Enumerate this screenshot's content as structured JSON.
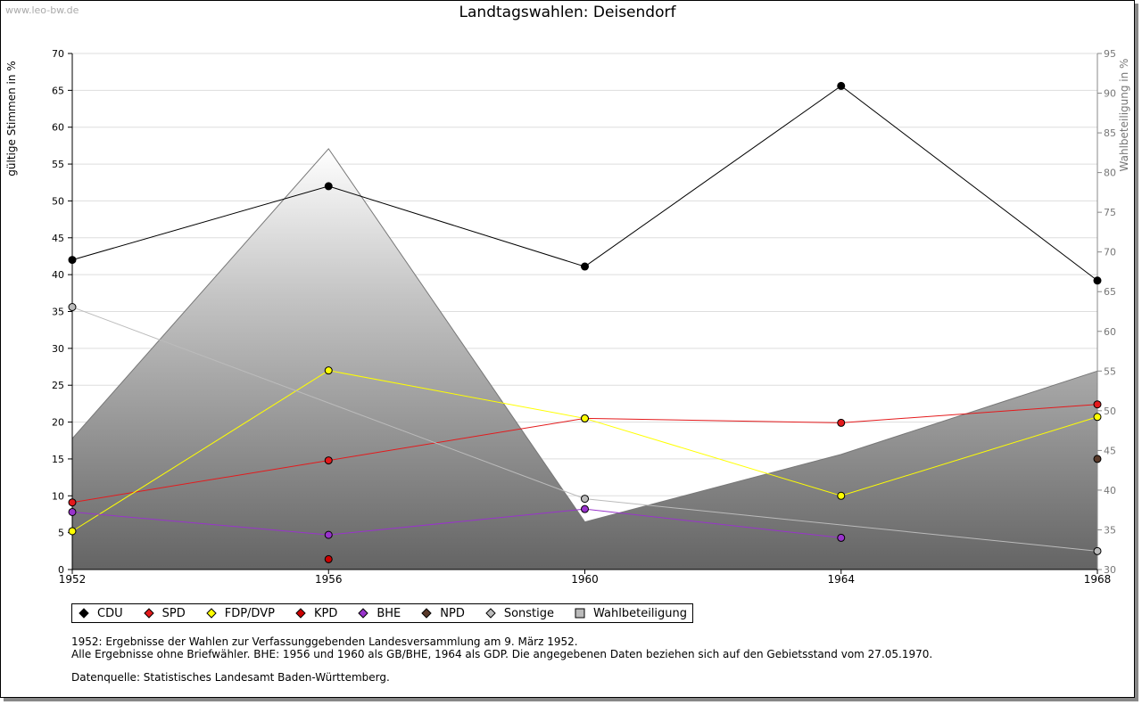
{
  "watermark": "www.leo-bw.de",
  "chart_data": {
    "type": "line",
    "title": "Landtagswahlen: Deisendorf",
    "ylabel": "gültige Stimmen in %",
    "ylabel_right": "Wahlbeteiligung in %",
    "xlabel": "",
    "x": [
      1952,
      1956,
      1960,
      1964,
      1968
    ],
    "ylim": [
      0,
      70
    ],
    "yticks": [
      0,
      5,
      10,
      15,
      20,
      25,
      30,
      35,
      40,
      45,
      50,
      55,
      60,
      65,
      70
    ],
    "ylim_right": [
      30,
      95
    ],
    "yticks_right": [
      30,
      35,
      40,
      45,
      50,
      55,
      60,
      65,
      70,
      75,
      80,
      85,
      90,
      95
    ],
    "grid": true,
    "area_series": {
      "name": "Wahlbeteiligung",
      "axis": "right",
      "values": [
        46.5,
        83.0,
        36.0,
        44.5,
        55.0
      ]
    },
    "series": [
      {
        "name": "CDU",
        "color": "#000000",
        "values": [
          42.0,
          52.0,
          41.1,
          65.6,
          39.2
        ]
      },
      {
        "name": "SPD",
        "color": "#e41a1c",
        "values": [
          9.1,
          14.8,
          20.5,
          19.9,
          22.4
        ]
      },
      {
        "name": "FDP/DVP",
        "color": "#ffff00",
        "values": [
          5.2,
          27.0,
          20.5,
          10.0,
          20.7
        ]
      },
      {
        "name": "KPD",
        "color": "#cc0000",
        "values": [
          null,
          1.4,
          null,
          null,
          null
        ]
      },
      {
        "name": "BHE",
        "color": "#9933cc",
        "values": [
          7.8,
          4.7,
          8.2,
          4.3,
          null
        ]
      },
      {
        "name": "NPD",
        "color": "#5a3a2a",
        "values": [
          null,
          null,
          null,
          null,
          15.0
        ]
      },
      {
        "name": "Sonstige",
        "color": "#bbbbbb",
        "values": [
          35.6,
          null,
          9.6,
          null,
          2.5
        ]
      }
    ],
    "legend": [
      {
        "label": "CDU",
        "color": "#000000",
        "shape": "diamond"
      },
      {
        "label": "SPD",
        "color": "#e41a1c",
        "shape": "diamond"
      },
      {
        "label": "FDP/DVP",
        "color": "#ffff00",
        "shape": "diamond"
      },
      {
        "label": "KPD",
        "color": "#cc0000",
        "shape": "diamond"
      },
      {
        "label": "BHE",
        "color": "#9933cc",
        "shape": "diamond"
      },
      {
        "label": "NPD",
        "color": "#5a3a2a",
        "shape": "diamond"
      },
      {
        "label": "Sonstige",
        "color": "#bbbbbb",
        "shape": "diamond"
      },
      {
        "label": "Wahlbeteiligung",
        "color": "#bbbbbb",
        "shape": "square"
      }
    ],
    "legend_position": "bottom-left"
  },
  "notes": {
    "line1": "1952: Ergebnisse der Wahlen zur Verfassunggebenden Landesversammlung am 9. März 1952.",
    "line2": "Alle Ergebnisse ohne Briefwähler. BHE: 1956 und 1960 als GB/BHE, 1964 als GDP. Die angegebenen Daten beziehen sich auf den Gebietsstand vom 27.05.1970.",
    "source": "Datenquelle: Statistisches Landesamt Baden-Württemberg."
  }
}
